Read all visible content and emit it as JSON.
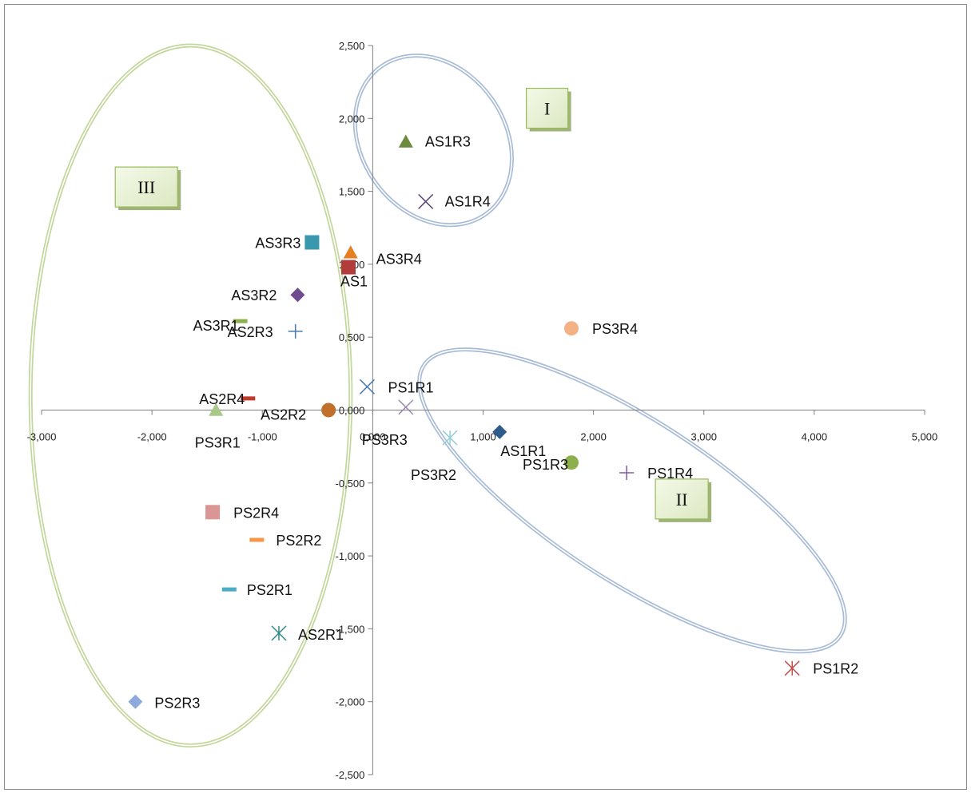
{
  "chart_data": {
    "type": "scatter",
    "title": "",
    "xlabel": "",
    "ylabel": "",
    "xlim": [
      -3,
      5
    ],
    "ylim": [
      -2.5,
      2.5
    ],
    "x_ticks": [
      -3,
      -2,
      -1,
      0,
      1,
      2,
      3,
      4,
      5
    ],
    "y_ticks": [
      -2.5,
      -2,
      -1.5,
      -1,
      -0.5,
      0,
      0.5,
      1,
      1.5,
      2,
      2.5
    ],
    "x_tick_labels": [
      "-3,000",
      "-2,000",
      "-1,000",
      "0,000",
      "1,000",
      "2,000",
      "3,000",
      "4,000",
      "5,000"
    ],
    "y_tick_labels": [
      "-2,500",
      "-2,000",
      "-1,500",
      "-1,000",
      "-0,500",
      "0,000",
      "0,500",
      "1,000",
      "1,500",
      "2,000",
      "2,500"
    ],
    "grid": false,
    "legend": "none",
    "points": [
      {
        "label": "AS1R3",
        "x": 0.3,
        "y": 1.84,
        "marker": "triangle",
        "color": "#6e8b3d"
      },
      {
        "label": "AS1R4",
        "x": 0.48,
        "y": 1.43,
        "marker": "x",
        "color": "#5a3f72"
      },
      {
        "label": "AS3R3",
        "x": -0.55,
        "y": 1.15,
        "marker": "square",
        "color": "#3a98ae"
      },
      {
        "label": "AS3R4",
        "x": -0.2,
        "y": 1.08,
        "marker": "triangle",
        "color": "#e67e22"
      },
      {
        "label": "AS1",
        "x": -0.22,
        "y": 0.98,
        "marker": "square",
        "color": "#b23b3b"
      },
      {
        "label": "AS3R2",
        "x": -0.68,
        "y": 0.79,
        "marker": "diamond",
        "color": "#6f4a8e"
      },
      {
        "label": "AS3R1",
        "x": -1.2,
        "y": 0.61,
        "marker": "dash",
        "color": "#8db04c"
      },
      {
        "label": "AS2R3",
        "x": -0.7,
        "y": 0.54,
        "marker": "plus",
        "color": "#4a7ab5"
      },
      {
        "label": "PS3R4",
        "x": 1.8,
        "y": 0.56,
        "marker": "circle",
        "color": "#f4b183"
      },
      {
        "label": "PS1R1",
        "x": -0.05,
        "y": 0.16,
        "marker": "x",
        "color": "#4a7ab5"
      },
      {
        "label": "AS2R4",
        "x": -1.13,
        "y": 0.08,
        "marker": "dash",
        "color": "#c0392b"
      },
      {
        "label": "AS2R2",
        "x": -0.4,
        "y": 0.0,
        "marker": "circle",
        "color": "#c0702b"
      },
      {
        "label": "PS3R1",
        "x": -1.42,
        "y": 0.0,
        "marker": "triangle",
        "color": "#a9c98a"
      },
      {
        "label": "PS3R3",
        "x": 0.3,
        "y": 0.02,
        "marker": "x",
        "color": "#9b86b5"
      },
      {
        "label": "PS3R2",
        "x": 0.7,
        "y": -0.19,
        "marker": "asterisk",
        "color": "#92cddc"
      },
      {
        "label": "AS1R1",
        "x": 1.15,
        "y": -0.15,
        "marker": "diamond",
        "color": "#2e5c8a"
      },
      {
        "label": "PS1R3",
        "x": 1.8,
        "y": -0.36,
        "marker": "circle",
        "color": "#8db04c"
      },
      {
        "label": "PS1R4",
        "x": 2.3,
        "y": -0.43,
        "marker": "plus",
        "color": "#7d5ba6"
      },
      {
        "label": "PS2R4",
        "x": -1.45,
        "y": -0.7,
        "marker": "square",
        "color": "#d99694"
      },
      {
        "label": "PS2R2",
        "x": -1.05,
        "y": -0.89,
        "marker": "dash",
        "color": "#f79646"
      },
      {
        "label": "PS2R1",
        "x": -1.3,
        "y": -1.23,
        "marker": "dash",
        "color": "#4bacc6"
      },
      {
        "label": "AS2R1",
        "x": -0.85,
        "y": -1.53,
        "marker": "asterisk",
        "color": "#2e8b8b"
      },
      {
        "label": "PS1R2",
        "x": 3.8,
        "y": -1.77,
        "marker": "asterisk",
        "color": "#c0504d"
      },
      {
        "label": "PS2R3",
        "x": -2.15,
        "y": -2.0,
        "marker": "diamond",
        "color": "#8ea9db"
      }
    ],
    "annotations": [
      {
        "text": "I",
        "x": 1.58,
        "y": 2.07,
        "kind": "region-label"
      },
      {
        "text": "II",
        "x": 2.8,
        "y": -0.61,
        "kind": "region-label"
      },
      {
        "text": "III",
        "x": -2.05,
        "y": 1.53,
        "kind": "region-label"
      }
    ],
    "regions": [
      {
        "name": "I",
        "center": [
          0.55,
          1.85
        ],
        "rx": 0.65,
        "ry": 0.62,
        "rotation": -35,
        "color": "#a9bcd6"
      },
      {
        "name": "II",
        "center": [
          2.35,
          -0.62
        ],
        "rx": 2.25,
        "ry": 0.55,
        "rotation": 33,
        "color": "#a9bcd6"
      },
      {
        "name": "III",
        "center": [
          -1.65,
          0.1
        ],
        "rx": 1.45,
        "ry": 2.4,
        "rotation": 0,
        "color": "#c3d69b"
      }
    ]
  }
}
